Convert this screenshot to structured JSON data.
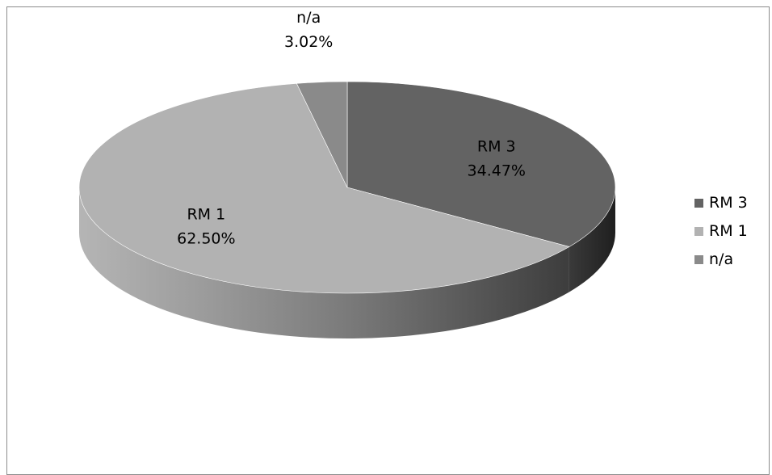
{
  "chart_data": {
    "type": "pie",
    "title": "",
    "series": [
      {
        "name": "RM 3",
        "value": 34.47,
        "value_label": "34.47%",
        "color": "#636363"
      },
      {
        "name": "RM 1",
        "value": 62.5,
        "value_label": "62.50%",
        "color": "#b2b2b2"
      },
      {
        "name": "n/a",
        "value": 3.02,
        "value_label": "3.02%",
        "color": "#8a8a8a"
      }
    ],
    "legend_position": "right",
    "three_d": true
  }
}
